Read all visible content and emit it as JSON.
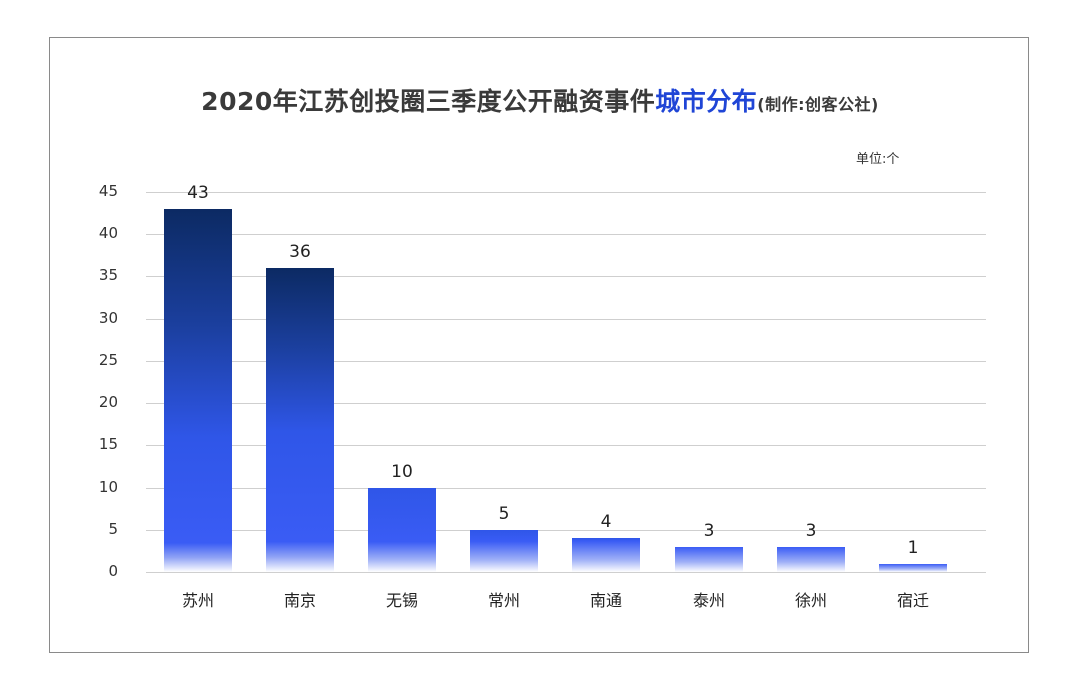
{
  "title": {
    "main": "2020年江苏创投圈三季度公开融资事件",
    "highlight": "城市分布",
    "credit": "(制作:创客公社)"
  },
  "unit_label": "单位:个",
  "colors": {
    "title_highlight": "#1f45d6",
    "bar_top_dark": "#0c2a63",
    "bar_mid": "#2f56e8",
    "bar_bright": "#3a5cf5",
    "gridline": "#cfcfcf",
    "frame": "#8a8a8a"
  },
  "chart_data": {
    "type": "bar",
    "title": "2020年江苏创投圈三季度公开融资事件城市分布(制作:创客公社)",
    "unit": "单位:个",
    "xlabel": "",
    "ylabel": "",
    "categories": [
      "苏州",
      "南京",
      "无锡",
      "常州",
      "南通",
      "泰州",
      "徐州",
      "宿迁"
    ],
    "values": [
      43,
      36,
      10,
      5,
      4,
      3,
      3,
      1
    ],
    "ylim": [
      0,
      45
    ],
    "yticks": [
      0,
      5,
      10,
      15,
      20,
      25,
      30,
      35,
      40,
      45
    ],
    "grid": true,
    "legend": "none",
    "data_labels": true
  }
}
